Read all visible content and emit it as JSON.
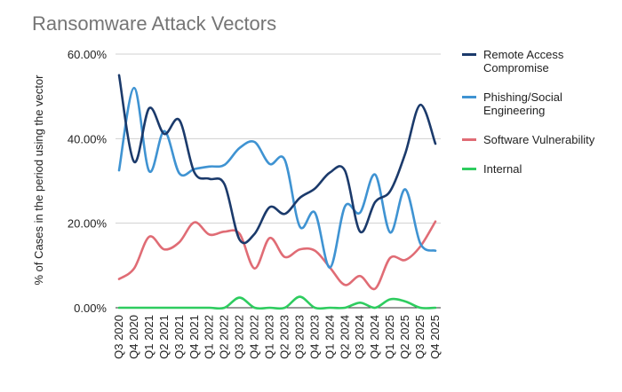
{
  "chart_data": {
    "type": "line",
    "title": "Ransomware Attack Vectors",
    "xlabel": "",
    "ylabel": "% of Cases in the period using the vector",
    "categories": [
      "Q3 2020",
      "Q4 2020",
      "Q1 2021",
      "Q2 2021",
      "Q3 2021",
      "Q4 2021",
      "Q1 2022",
      "Q2 2022",
      "Q3 2022",
      "Q4 2022",
      "Q1 2023",
      "Q2 2023",
      "Q3 2023",
      "Q4 2023",
      "Q1 2024",
      "Q2 2024",
      "Q3 2024",
      "Q4 2024",
      "Q1 2025",
      "Q2 2025",
      "Q3 2025",
      "Q4 2025"
    ],
    "y_ticks": [
      "0.00%",
      "20.00%",
      "40.00%",
      "60.00%"
    ],
    "ylim": [
      0,
      60
    ],
    "grid": true,
    "legend_position": "right",
    "series": [
      {
        "name": "Remote Access Compromise",
        "color": "#1b3a6b",
        "values": [
          55.0,
          34.5,
          47.2,
          41.1,
          44.4,
          32.0,
          30.5,
          29.2,
          16.1,
          17.5,
          23.8,
          22.2,
          26.0,
          28.2,
          32.0,
          32.4,
          18.0,
          25.0,
          27.6,
          36.5,
          48.0,
          38.8
        ]
      },
      {
        "name": "Phishing/Social Engineering",
        "color": "#3f93d2",
        "values": [
          32.5,
          52.0,
          32.3,
          41.8,
          31.8,
          32.8,
          33.4,
          33.8,
          37.8,
          39.2,
          34.0,
          35.0,
          19.2,
          22.5,
          9.5,
          24.0,
          22.5,
          31.5,
          17.8,
          28.0,
          15.2,
          13.5
        ]
      },
      {
        "name": "Software Vulnerability",
        "color": "#e06c75",
        "values": [
          6.8,
          9.3,
          16.8,
          13.8,
          15.5,
          20.2,
          17.3,
          18.0,
          17.5,
          9.3,
          16.5,
          12.0,
          13.8,
          13.5,
          9.5,
          5.4,
          7.5,
          4.5,
          11.8,
          11.3,
          14.5,
          20.4
        ]
      },
      {
        "name": "Internal",
        "color": "#2ecc5f",
        "values": [
          0,
          0,
          0,
          0,
          0,
          0,
          0,
          0,
          2.4,
          0,
          0,
          0,
          2.6,
          0,
          0,
          0,
          1.2,
          0,
          2.0,
          1.5,
          0,
          0
        ]
      }
    ]
  }
}
